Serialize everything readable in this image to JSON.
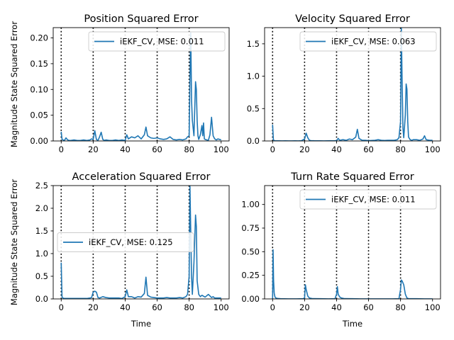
{
  "colors": {
    "series": "#1f77b4",
    "vlines": "#000000"
  },
  "chart_data": [
    {
      "type": "line",
      "title": "Position Squared Error",
      "xlabel": "",
      "ylabel": "Magnitude State Squared Error",
      "xlim": [
        -5,
        105
      ],
      "ylim": [
        0,
        0.22
      ],
      "xticks": [
        0,
        20,
        40,
        60,
        80,
        100
      ],
      "yticks": [
        0.0,
        0.05,
        0.1,
        0.15,
        0.2
      ],
      "ytick_labels": [
        "0.00",
        "0.05",
        "0.10",
        "0.15",
        "0.20"
      ],
      "xtick_labels": [
        "0",
        "20",
        "40",
        "60",
        "80",
        "100"
      ],
      "vlines": [
        0,
        20,
        40,
        60,
        80
      ],
      "legend": {
        "label": "iEKF_CV, MSE: 0.011",
        "loc": "upper right"
      },
      "series": [
        {
          "x": [
            0,
            0.5,
            1,
            2,
            3,
            4,
            5,
            6,
            8,
            10,
            12,
            14,
            16,
            18,
            19,
            20,
            21,
            22,
            23,
            24,
            25,
            26,
            27,
            28,
            30,
            32,
            34,
            36,
            38,
            40,
            41,
            42,
            44,
            46,
            48,
            50,
            52,
            53,
            54,
            56,
            58,
            60,
            62,
            64,
            66,
            68,
            70,
            72,
            74,
            76,
            78,
            79,
            80,
            80.5,
            81,
            81.5,
            82,
            83,
            84,
            84.5,
            85,
            85.5,
            86,
            87,
            88,
            88.5,
            89,
            89.5,
            90,
            91,
            92,
            93,
            94,
            95,
            96,
            97,
            98,
            99,
            100
          ],
          "y": [
            0.018,
            0.004,
            0.002,
            0.001,
            0.006,
            0.002,
            0.001,
            0.001,
            0.002,
            0.001,
            0.001,
            0.002,
            0.001,
            0.002,
            0.004,
            0.003,
            0.02,
            0.003,
            0.001,
            0.008,
            0.017,
            0.003,
            0.001,
            0.002,
            0.001,
            0.001,
            0.002,
            0.001,
            0.002,
            0.001,
            0.012,
            0.004,
            0.008,
            0.006,
            0.01,
            0.004,
            0.012,
            0.027,
            0.01,
            0.006,
            0.005,
            0.006,
            0.004,
            0.003,
            0.004,
            0.008,
            0.003,
            0.002,
            0.003,
            0.002,
            0.004,
            0.008,
            0.01,
            0.12,
            0.21,
            0.08,
            0.04,
            0.01,
            0.115,
            0.1,
            0.04,
            0.01,
            0.003,
            0.012,
            0.03,
            0.01,
            0.035,
            0.004,
            0.003,
            0.002,
            0.001,
            0.012,
            0.046,
            0.01,
            0.004,
            0.002,
            0.004,
            0.003,
            0.002
          ]
        }
      ]
    },
    {
      "type": "line",
      "title": "Velocity Squared Error",
      "xlabel": "",
      "ylabel": "",
      "xlim": [
        -5,
        105
      ],
      "ylim": [
        0,
        1.75
      ],
      "xticks": [
        0,
        20,
        40,
        60,
        80,
        100
      ],
      "yticks": [
        0.0,
        0.5,
        1.0,
        1.5
      ],
      "ytick_labels": [
        "0.0",
        "0.5",
        "1.0",
        "1.5"
      ],
      "xtick_labels": [
        "0",
        "20",
        "40",
        "60",
        "80",
        "100"
      ],
      "vlines": [
        0,
        20,
        40,
        60,
        80
      ],
      "legend": {
        "label": "iEKF_CV, MSE: 0.063",
        "loc": "upper right"
      },
      "series": [
        {
          "x": [
            0,
            0.5,
            1,
            2,
            4,
            6,
            8,
            10,
            12,
            14,
            16,
            18,
            20,
            21,
            22,
            23,
            24,
            26,
            28,
            30,
            32,
            34,
            36,
            38,
            40,
            41,
            42,
            44,
            46,
            48,
            50,
            52,
            53,
            54,
            56,
            58,
            60,
            62,
            64,
            66,
            68,
            70,
            72,
            74,
            76,
            78,
            79,
            80,
            80.5,
            81,
            81.5,
            82,
            83,
            83.5,
            84,
            84.5,
            85,
            86,
            87,
            88,
            90,
            92,
            94,
            95,
            96,
            98,
            100
          ],
          "y": [
            0.25,
            0.02,
            0.005,
            0.002,
            0.002,
            0.001,
            0.002,
            0.001,
            0.001,
            0.002,
            0.001,
            0.003,
            0.03,
            0.12,
            0.05,
            0.01,
            0.005,
            0.003,
            0.002,
            0.002,
            0.001,
            0.002,
            0.003,
            0.002,
            0.005,
            0.04,
            0.01,
            0.02,
            0.01,
            0.03,
            0.02,
            0.06,
            0.18,
            0.04,
            0.01,
            0.01,
            0.005,
            0.008,
            0.01,
            0.02,
            0.01,
            0.008,
            0.01,
            0.01,
            0.01,
            0.02,
            0.05,
            0.3,
            1.75,
            0.9,
            0.2,
            0.05,
            0.4,
            0.88,
            0.8,
            0.3,
            0.06,
            0.02,
            0.01,
            0.02,
            0.02,
            0.01,
            0.03,
            0.08,
            0.02,
            0.01,
            0.01
          ]
        }
      ]
    },
    {
      "type": "line",
      "title": "Acceleration Squared Error",
      "xlabel": "Time",
      "ylabel": "Magnitude State Squared Error",
      "xlim": [
        -5,
        105
      ],
      "ylim": [
        0,
        2.5
      ],
      "xticks": [
        0,
        20,
        40,
        60,
        80,
        100
      ],
      "yticks": [
        0.0,
        0.5,
        1.0,
        1.5,
        2.0,
        2.5
      ],
      "ytick_labels": [
        "0.0",
        "0.5",
        "1.0",
        "1.5",
        "2.0",
        "2.5"
      ],
      "xtick_labels": [
        "0",
        "20",
        "40",
        "60",
        "80",
        "100"
      ],
      "vlines": [
        0,
        20,
        40,
        60,
        80
      ],
      "legend": {
        "label": "iEKF_CV, MSE: 0.125",
        "loc": "center left"
      },
      "series": [
        {
          "x": [
            0,
            0.5,
            1,
            2,
            4,
            6,
            8,
            10,
            12,
            14,
            16,
            18,
            19,
            20,
            21,
            22,
            23,
            24,
            26,
            28,
            30,
            32,
            34,
            36,
            38,
            40,
            41,
            42,
            44,
            46,
            48,
            50,
            52,
            53,
            54,
            56,
            58,
            60,
            62,
            64,
            66,
            68,
            70,
            72,
            74,
            76,
            78,
            79,
            80,
            80.5,
            81,
            81.5,
            82,
            83,
            84,
            84.5,
            85,
            86,
            87,
            88,
            90,
            92,
            94,
            95,
            96,
            98,
            100
          ],
          "y": [
            0.8,
            0.05,
            0.02,
            0.01,
            0.01,
            0.01,
            0.01,
            0.01,
            0.01,
            0.01,
            0.01,
            0.02,
            0.03,
            0.15,
            0.17,
            0.15,
            0.03,
            0.02,
            0.05,
            0.03,
            0.02,
            0.02,
            0.02,
            0.02,
            0.01,
            0.05,
            0.2,
            0.05,
            0.05,
            0.02,
            0.05,
            0.04,
            0.12,
            0.48,
            0.08,
            0.04,
            0.03,
            0.02,
            0.02,
            0.02,
            0.03,
            0.02,
            0.02,
            0.02,
            0.03,
            0.02,
            0.05,
            0.1,
            0.5,
            2.5,
            1.5,
            0.5,
            0.1,
            0.8,
            1.85,
            1.6,
            0.4,
            0.1,
            0.05,
            0.08,
            0.04,
            0.1,
            0.03,
            0.05,
            0.02,
            0.02,
            0.02
          ]
        }
      ]
    },
    {
      "type": "line",
      "title": "Turn Rate Squared Error",
      "xlabel": "Time",
      "ylabel": "",
      "xlim": [
        -5,
        105
      ],
      "ylim": [
        0,
        1.2
      ],
      "xticks": [
        0,
        20,
        40,
        60,
        80,
        100
      ],
      "yticks": [
        0.0,
        0.25,
        0.5,
        0.75,
        1.0
      ],
      "ytick_labels": [
        "0.00",
        "0.25",
        "0.50",
        "0.75",
        "1.00"
      ],
      "xtick_labels": [
        "0",
        "20",
        "40",
        "60",
        "80",
        "100"
      ],
      "vlines": [
        0,
        20,
        40,
        60,
        80
      ],
      "legend": {
        "label": "iEKF_CV, MSE: 0.011",
        "loc": "upper right"
      },
      "series": [
        {
          "x": [
            0,
            0.3,
            0.6,
            1,
            1.5,
            2,
            3,
            5,
            10,
            15,
            19,
            20,
            20.5,
            21,
            22,
            23,
            25,
            30,
            35,
            39,
            40,
            40.5,
            41,
            42,
            43,
            45,
            50,
            55,
            60,
            65,
            70,
            75,
            79,
            80,
            80.5,
            81,
            82,
            83,
            84,
            85,
            90,
            95,
            100
          ],
          "y": [
            0.0,
            0.52,
            0.2,
            0.06,
            0.02,
            0.01,
            0.005,
            0.002,
            0.001,
            0.001,
            0.002,
            0.01,
            0.15,
            0.1,
            0.03,
            0.01,
            0.003,
            0.002,
            0.001,
            0.002,
            0.05,
            0.13,
            0.05,
            0.02,
            0.01,
            0.003,
            0.002,
            0.001,
            0.001,
            0.001,
            0.001,
            0.001,
            0.002,
            0.1,
            0.2,
            0.19,
            0.15,
            0.05,
            0.01,
            0.003,
            0.002,
            0.001,
            0.001
          ]
        }
      ]
    }
  ]
}
